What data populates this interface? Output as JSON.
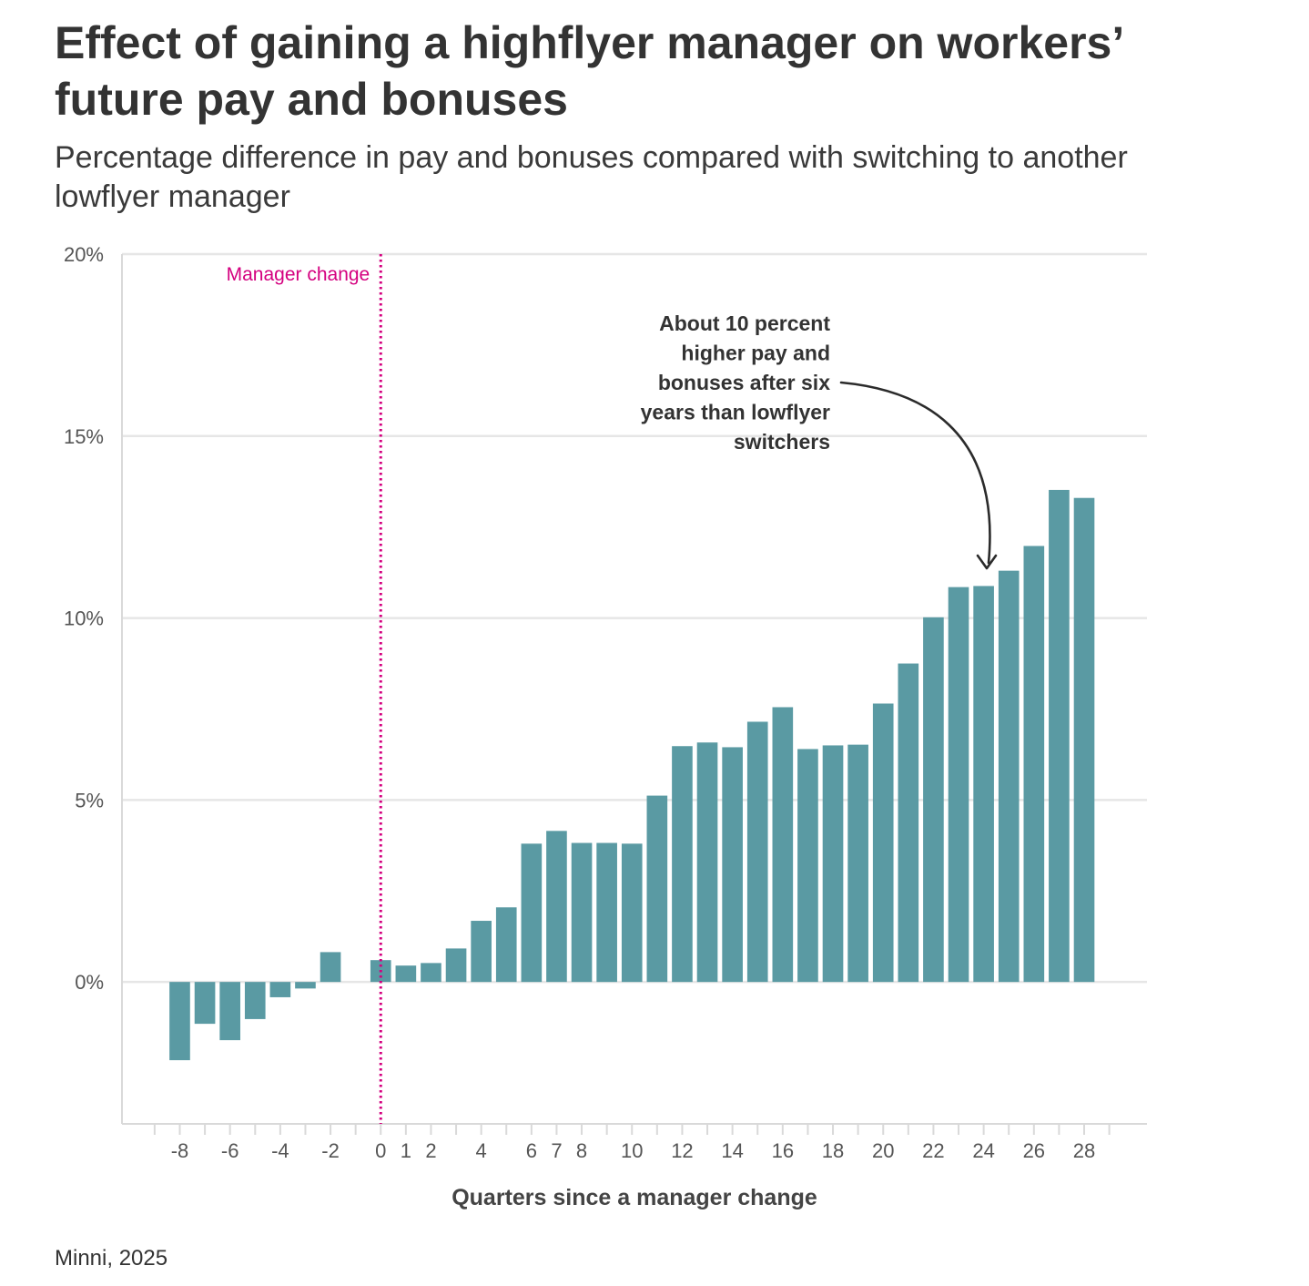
{
  "chart_data": {
    "type": "bar",
    "title": "Effect of gaining a highflyer manager on workers’ future pay and bonuses",
    "subtitle": "Percentage difference in pay and bonuses compared with switching to another lowflyer manager",
    "xlabel": "Quarters since a manager change",
    "ylabel": "",
    "ylim": [
      -3.9,
      20
    ],
    "xlim": [
      -10.3,
      30.5
    ],
    "y_ticks": [
      0,
      5,
      10,
      15,
      20
    ],
    "y_tick_labels": [
      "0%",
      "5%",
      "10%",
      "15%",
      "20%"
    ],
    "x_ticks": [
      -8,
      -6,
      -4,
      -2,
      0,
      1,
      2,
      4,
      6,
      7,
      8,
      10,
      12,
      14,
      16,
      18,
      20,
      22,
      24,
      26,
      28
    ],
    "x_tick_labels": [
      "-8",
      "-6",
      "-4",
      "-2",
      "0",
      "1",
      "2",
      "4",
      "6",
      "7",
      "8",
      "10",
      "12",
      "14",
      "16",
      "18",
      "20",
      "22",
      "24",
      "26",
      "28"
    ],
    "x_minor_ticks": [
      -9,
      -7,
      -5,
      -3,
      -1,
      3,
      5,
      9,
      11,
      13,
      15,
      17,
      19,
      21,
      23,
      25,
      27,
      29
    ],
    "grid": true,
    "bar_color": "#5a9aa3",
    "series": [
      {
        "x": [
          -8,
          -7,
          -6,
          -5,
          -4,
          -3,
          -2,
          0,
          1,
          2,
          3,
          4,
          5,
          6,
          7,
          8,
          9,
          10,
          11,
          12,
          13,
          14,
          15,
          16,
          17,
          18,
          19,
          20,
          21,
          22,
          23,
          24,
          25,
          26,
          27,
          28
        ],
        "values": [
          -2.15,
          -1.15,
          -1.6,
          -1.02,
          -0.42,
          -0.18,
          0.82,
          0.6,
          0.45,
          0.52,
          0.92,
          1.68,
          2.05,
          3.8,
          4.15,
          3.82,
          3.82,
          3.8,
          5.12,
          6.48,
          6.58,
          6.45,
          7.15,
          7.55,
          6.4,
          6.5,
          6.52,
          7.65,
          8.75,
          10.02,
          10.85,
          10.88,
          11.3,
          11.98,
          13.52,
          13.3
        ]
      }
    ],
    "reference_line": {
      "x": 0,
      "label": "Manager change",
      "color": "#d4007f"
    },
    "annotation": {
      "lines": [
        "About 10 percent",
        "higher pay and",
        "bonuses after six",
        "years than lowflyer",
        "switchers"
      ],
      "arrow_to_x": 24
    }
  },
  "source": "Minni, 2025",
  "colors": {
    "text": "#333333",
    "grid": "#e6e6e6",
    "axis": "#d9d9d9",
    "tick_text": "#555555"
  }
}
